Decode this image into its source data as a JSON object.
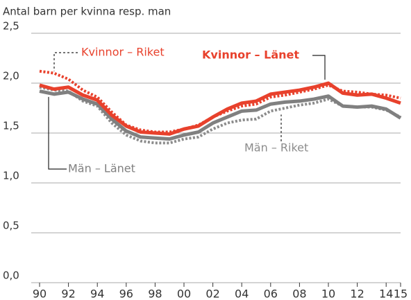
{
  "chart_data": {
    "type": "line",
    "title": "Antal barn per kvinna resp. man",
    "categories": [
      "90",
      null,
      "92",
      null,
      "94",
      null,
      "96",
      null,
      "98",
      null,
      "00",
      null,
      "02",
      null,
      "04",
      null,
      "06",
      null,
      "08",
      null,
      "10",
      null,
      "12",
      null,
      "14",
      "15"
    ],
    "series": [
      {
        "name": "Kvinnor – Riket",
        "color": "#e8412c",
        "dashed": true,
        "values": [
          2.12,
          2.1,
          2.04,
          1.93,
          1.86,
          1.71,
          1.58,
          1.53,
          1.51,
          1.51,
          1.54,
          1.58,
          1.66,
          1.72,
          1.77,
          1.79,
          1.86,
          1.88,
          1.91,
          1.94,
          1.98,
          1.92,
          1.91,
          1.89,
          1.88,
          1.85
        ]
      },
      {
        "name": "Kvinnor – Länet",
        "color": "#e8412c",
        "dashed": false,
        "values": [
          1.98,
          1.94,
          1.96,
          1.88,
          1.83,
          1.68,
          1.57,
          1.51,
          1.5,
          1.49,
          1.54,
          1.57,
          1.66,
          1.74,
          1.8,
          1.82,
          1.89,
          1.91,
          1.93,
          1.96,
          2.0,
          1.9,
          1.88,
          1.89,
          1.85,
          1.8
        ]
      },
      {
        "name": "Män – Riket",
        "color": "#8c8c8c",
        "dashed": true,
        "values": [
          1.96,
          1.93,
          1.92,
          1.82,
          1.77,
          1.6,
          1.48,
          1.42,
          1.4,
          1.4,
          1.44,
          1.46,
          1.54,
          1.6,
          1.63,
          1.64,
          1.72,
          1.75,
          1.78,
          1.8,
          1.84,
          1.77,
          1.76,
          1.76,
          1.73,
          1.66
        ]
      },
      {
        "name": "Män – Länet",
        "color": "#808080",
        "dashed": false,
        "values": [
          1.92,
          1.89,
          1.91,
          1.84,
          1.79,
          1.64,
          1.52,
          1.46,
          1.45,
          1.44,
          1.48,
          1.51,
          1.6,
          1.66,
          1.72,
          1.73,
          1.79,
          1.81,
          1.82,
          1.84,
          1.87,
          1.77,
          1.76,
          1.77,
          1.74,
          1.65
        ]
      }
    ],
    "ylim": [
      0,
      2.5
    ],
    "yticks": [
      {
        "value": 0,
        "label": "0,0"
      },
      {
        "value": 0.5,
        "label": "0,5"
      },
      {
        "value": 1,
        "label": "1,0"
      },
      {
        "value": 1.5,
        "label": "1,5"
      },
      {
        "value": 2,
        "label": "2,0"
      },
      {
        "value": 2.5,
        "label": "2,5"
      }
    ],
    "grid": true
  }
}
